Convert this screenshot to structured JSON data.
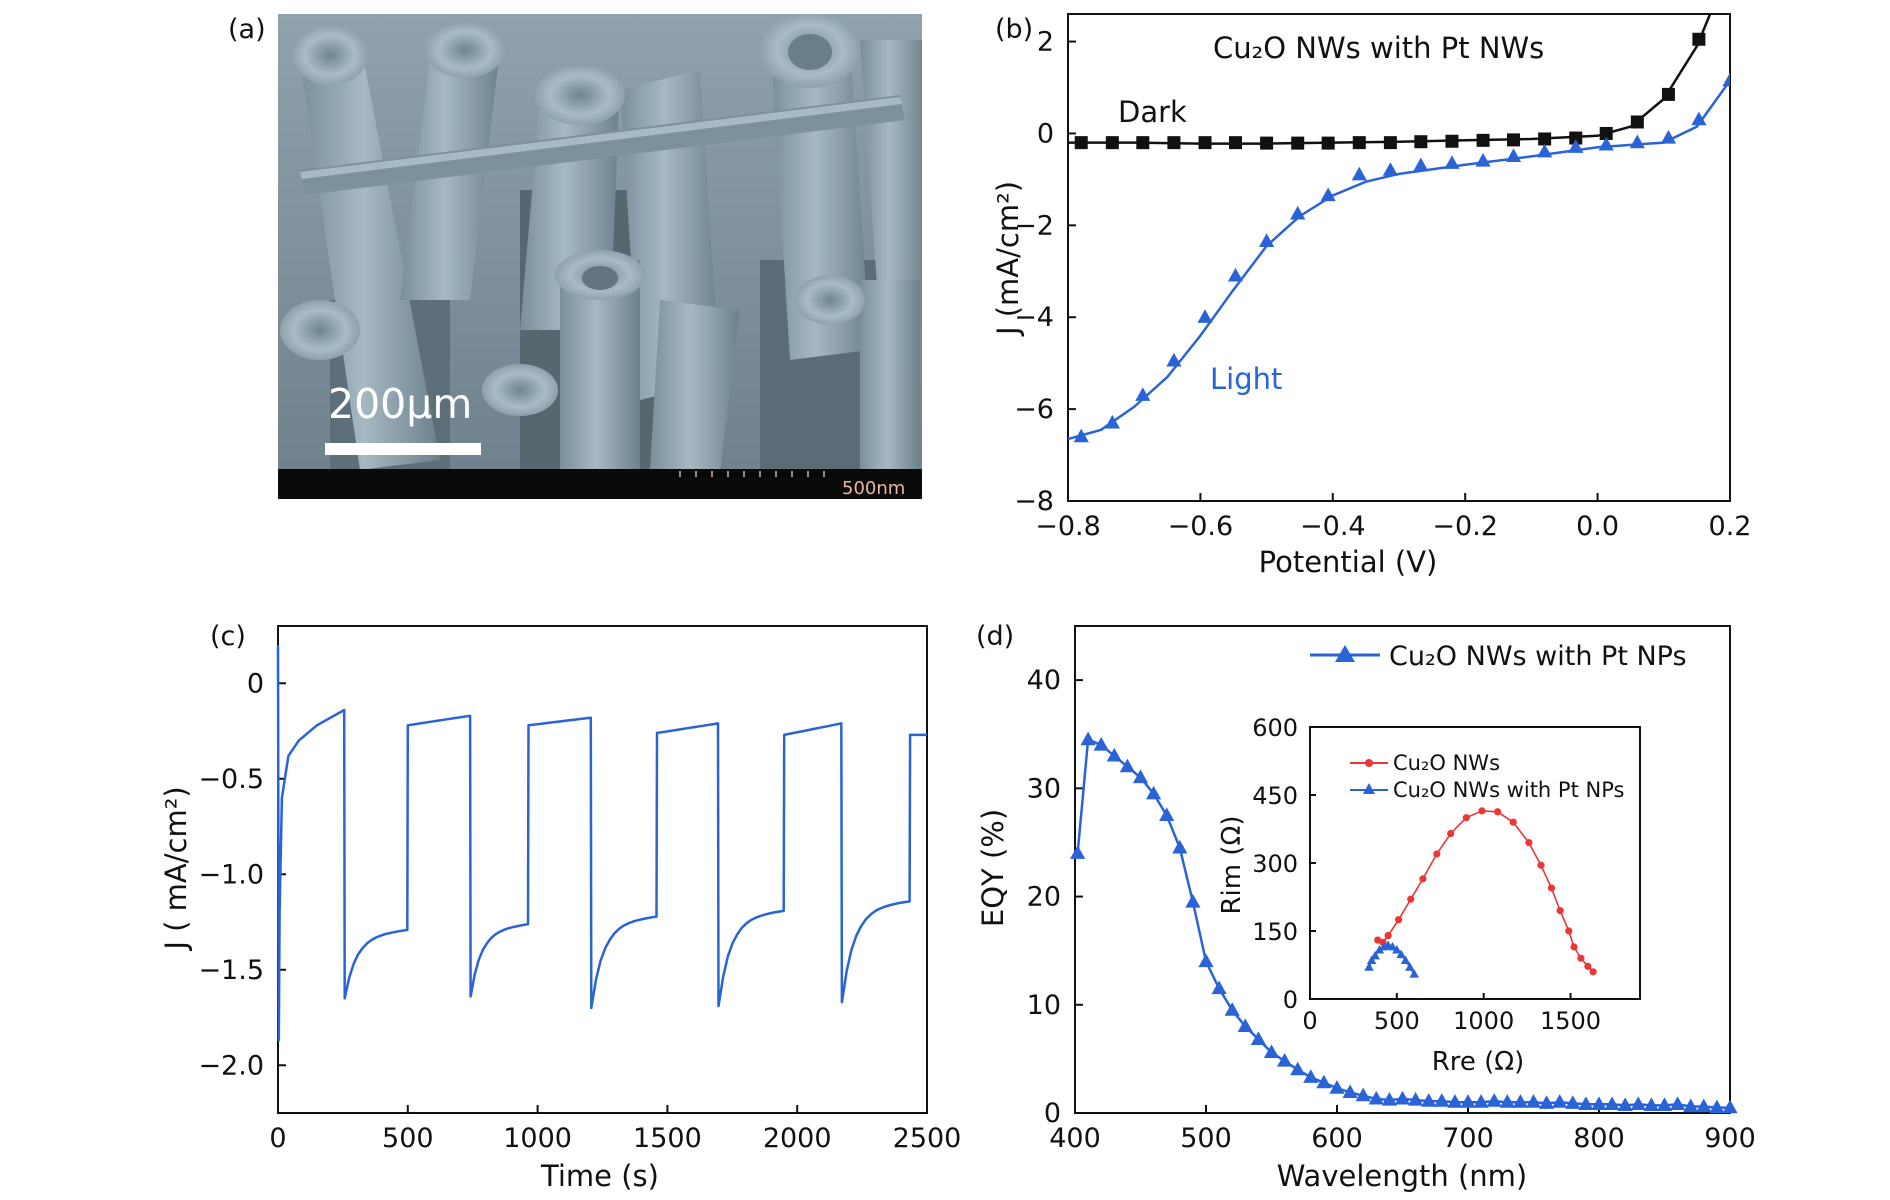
{
  "panel_labels": [
    "(a)",
    "(b)",
    "(c)",
    "(d)"
  ],
  "sem": {
    "scale_bar_label": "200μm",
    "footer_scale": "500nm"
  },
  "chart_data": [
    {
      "panel": "(b)",
      "type": "line",
      "title": "Cu₂O NWs with Pt NWs",
      "xlabel": "Potential (V)",
      "ylabel": "J (mA/cm²)",
      "xlim": [
        -0.8,
        0.2
      ],
      "ylim": [
        -8,
        2.6
      ],
      "xticks": [
        -0.8,
        -0.6,
        -0.4,
        -0.2,
        0.0,
        0.2
      ],
      "xtick_labels": [
        "−0.8",
        "−0.6",
        "−0.4",
        "−0.2",
        "0.0",
        "0.2"
      ],
      "yticks": [
        -8,
        -6,
        -4,
        -2,
        0,
        2
      ],
      "ytick_labels": [
        "−8",
        "−6",
        "−4",
        "−2",
        "0",
        "2"
      ],
      "series": [
        {
          "name": "Dark",
          "color": "#111111",
          "marker": "square",
          "line": [
            [
              -0.8,
              -0.2
            ],
            [
              -0.7,
              -0.2
            ],
            [
              -0.6,
              -0.22
            ],
            [
              -0.5,
              -0.22
            ],
            [
              -0.4,
              -0.2
            ],
            [
              -0.3,
              -0.18
            ],
            [
              -0.2,
              -0.15
            ],
            [
              -0.1,
              -0.12
            ],
            [
              0.0,
              -0.05
            ],
            [
              0.05,
              0.15
            ],
            [
              0.1,
              0.75
            ],
            [
              0.15,
              1.9
            ],
            [
              0.17,
              2.6
            ]
          ],
          "points": [
            [
              -0.78,
              -0.2
            ],
            [
              -0.733,
              -0.2
            ],
            [
              -0.687,
              -0.2
            ],
            [
              -0.64,
              -0.2
            ],
            [
              -0.593,
              -0.2
            ],
            [
              -0.547,
              -0.2
            ],
            [
              -0.5,
              -0.21
            ],
            [
              -0.453,
              -0.21
            ],
            [
              -0.407,
              -0.21
            ],
            [
              -0.36,
              -0.2
            ],
            [
              -0.313,
              -0.2
            ],
            [
              -0.267,
              -0.18
            ],
            [
              -0.22,
              -0.17
            ],
            [
              -0.173,
              -0.15
            ],
            [
              -0.127,
              -0.14
            ],
            [
              -0.08,
              -0.12
            ],
            [
              -0.033,
              -0.1
            ],
            [
              0.013,
              0.0
            ],
            [
              0.06,
              0.25
            ],
            [
              0.107,
              0.85
            ],
            [
              0.153,
              2.05
            ]
          ]
        },
        {
          "name": "Light",
          "color": "#2a63d8",
          "marker": "triangle",
          "line": [
            [
              -0.8,
              -6.65
            ],
            [
              -0.75,
              -6.45
            ],
            [
              -0.7,
              -5.95
            ],
            [
              -0.65,
              -5.3
            ],
            [
              -0.6,
              -4.4
            ],
            [
              -0.55,
              -3.4
            ],
            [
              -0.5,
              -2.45
            ],
            [
              -0.45,
              -1.8
            ],
            [
              -0.4,
              -1.35
            ],
            [
              -0.35,
              -1.05
            ],
            [
              -0.3,
              -0.88
            ],
            [
              -0.2,
              -0.68
            ],
            [
              -0.1,
              -0.5
            ],
            [
              0.0,
              -0.3
            ],
            [
              0.1,
              -0.2
            ],
            [
              0.15,
              0.15
            ],
            [
              0.2,
              1.15
            ]
          ],
          "points": [
            [
              -0.78,
              -6.6
            ],
            [
              -0.733,
              -6.3
            ],
            [
              -0.687,
              -5.7
            ],
            [
              -0.64,
              -4.95
            ],
            [
              -0.593,
              -4.0
            ],
            [
              -0.547,
              -3.1
            ],
            [
              -0.5,
              -2.35
            ],
            [
              -0.453,
              -1.75
            ],
            [
              -0.407,
              -1.35
            ],
            [
              -0.36,
              -0.9
            ],
            [
              -0.313,
              -0.8
            ],
            [
              -0.267,
              -0.7
            ],
            [
              -0.22,
              -0.65
            ],
            [
              -0.173,
              -0.6
            ],
            [
              -0.127,
              -0.5
            ],
            [
              -0.08,
              -0.4
            ],
            [
              -0.033,
              -0.3
            ],
            [
              0.013,
              -0.25
            ],
            [
              0.06,
              -0.2
            ],
            [
              0.107,
              -0.1
            ],
            [
              0.153,
              0.3
            ],
            [
              0.2,
              1.15
            ]
          ]
        }
      ],
      "annotations": [
        {
          "text": "Dark",
          "x": -0.75,
          "y": 0.5
        },
        {
          "text": "Light",
          "x": -0.59,
          "y": -5.1
        }
      ]
    },
    {
      "panel": "(c)",
      "type": "line",
      "xlabel": "Time (s)",
      "ylabel": "J ( mA/cm²)",
      "xlim": [
        0,
        2500
      ],
      "ylim": [
        -2.25,
        0.3
      ],
      "xticks": [
        0,
        500,
        1000,
        1500,
        2000,
        2500
      ],
      "xtick_labels": [
        "0",
        "500",
        "1000",
        "1500",
        "2000",
        "2500"
      ],
      "yticks": [
        0,
        -0.5,
        -1.0,
        -1.5,
        -2.0
      ],
      "ytick_labels": [
        "0",
        "−0.5",
        "−1.0",
        "−1.5",
        "−2.0"
      ],
      "series": [
        {
          "color": "#2a63d8",
          "cycles": [
            {
              "dark_start": 10,
              "light_start": 255,
              "dark_level_start": -0.24,
              "dark_level_end": -0.14,
              "spike": -1.65,
              "light_level": -1.32
            },
            {
              "dark_start": 500,
              "light_start": 740,
              "dark_level_start": -0.22,
              "dark_level_end": -0.17,
              "spike": -1.64,
              "light_level": -1.29
            },
            {
              "dark_start": 965,
              "light_start": 1205,
              "dark_level_start": -0.22,
              "dark_level_end": -0.18,
              "spike": -1.7,
              "light_level": -1.25
            },
            {
              "dark_start": 1460,
              "light_start": 1695,
              "dark_level_start": -0.26,
              "dark_level_end": -0.21,
              "spike": -1.69,
              "light_level": -1.22
            },
            {
              "dark_start": 1950,
              "light_start": 2170,
              "dark_level_start": -0.27,
              "dark_level_end": -0.21,
              "spike": -1.67,
              "light_level": -1.17
            },
            {
              "dark_start": 2435,
              "light_start": 2500,
              "dark_level_start": -0.27,
              "dark_level_end": -0.27,
              "spike": -0.27,
              "light_level": -0.27
            }
          ],
          "initial": {
            "start": 0.2,
            "min": -1.87
          }
        }
      ]
    },
    {
      "panel": "(d)",
      "type": "line",
      "xlabel": "Wavelength (nm)",
      "ylabel": "EQY (%)",
      "xlim": [
        400,
        900
      ],
      "ylim": [
        0,
        45
      ],
      "xticks": [
        400,
        500,
        600,
        700,
        800,
        900
      ],
      "xtick_labels": [
        "400",
        "500",
        "600",
        "700",
        "800",
        "900"
      ],
      "yticks": [
        0,
        10,
        20,
        30,
        40
      ],
      "ytick_labels": [
        "0",
        "10",
        "20",
        "30",
        "40"
      ],
      "legend": {
        "position": "top-right"
      },
      "series": [
        {
          "name": "Cu₂O NWs with Pt NPs",
          "color": "#2a63d8",
          "marker": "triangle",
          "points": [
            [
              402,
              24
            ],
            [
              410,
              34.5
            ],
            [
              420,
              34
            ],
            [
              430,
              33
            ],
            [
              440,
              32
            ],
            [
              450,
              31
            ],
            [
              460,
              29.5
            ],
            [
              470,
              27.5
            ],
            [
              480,
              24.5
            ],
            [
              490,
              19.5
            ],
            [
              500,
              14
            ],
            [
              510,
              11.5
            ],
            [
              520,
              9.5
            ],
            [
              530,
              8
            ],
            [
              540,
              6.8
            ],
            [
              550,
              5.6
            ],
            [
              560,
              4.8
            ],
            [
              570,
              4
            ],
            [
              580,
              3.3
            ],
            [
              590,
              2.8
            ],
            [
              600,
              2.3
            ],
            [
              610,
              1.9
            ],
            [
              620,
              1.6
            ],
            [
              630,
              1.3
            ],
            [
              640,
              1.2
            ],
            [
              650,
              1.3
            ],
            [
              660,
              1.2
            ],
            [
              670,
              1.1
            ],
            [
              680,
              1.1
            ],
            [
              690,
              1
            ],
            [
              700,
              1
            ],
            [
              710,
              1
            ],
            [
              720,
              1.1
            ],
            [
              730,
              1
            ],
            [
              740,
              1
            ],
            [
              750,
              1
            ],
            [
              760,
              0.9
            ],
            [
              770,
              1
            ],
            [
              780,
              0.9
            ],
            [
              790,
              0.8
            ],
            [
              800,
              0.8
            ],
            [
              810,
              0.8
            ],
            [
              820,
              0.7
            ],
            [
              830,
              0.8
            ],
            [
              840,
              0.7
            ],
            [
              850,
              0.7
            ],
            [
              860,
              0.8
            ],
            [
              870,
              0.6
            ],
            [
              880,
              0.6
            ],
            [
              890,
              0.5
            ],
            [
              900,
              0.5
            ]
          ]
        }
      ]
    },
    {
      "panel": "(d) inset",
      "type": "scatter",
      "xlabel": "Rre (Ω)",
      "ylabel": "Rim (Ω)",
      "xlim": [
        0,
        1900
      ],
      "ylim": [
        0,
        600
      ],
      "xticks": [
        0,
        500,
        1000,
        1500
      ],
      "xtick_labels": [
        "0",
        "500",
        "1000",
        "1500"
      ],
      "yticks": [
        0,
        150,
        300,
        450,
        600
      ],
      "ytick_labels": [
        "0",
        "150",
        "300",
        "450",
        "600"
      ],
      "legend": {
        "position": "top-left"
      },
      "series": [
        {
          "name": "Cu₂O NWs",
          "color": "#ee3535",
          "marker": "circle",
          "points": [
            [
              390,
              130
            ],
            [
              420,
              125
            ],
            [
              450,
              140
            ],
            [
              510,
              175
            ],
            [
              580,
              220
            ],
            [
              650,
              265
            ],
            [
              730,
              320
            ],
            [
              810,
              365
            ],
            [
              900,
              400
            ],
            [
              990,
              415
            ],
            [
              1080,
              413
            ],
            [
              1170,
              390
            ],
            [
              1260,
              345
            ],
            [
              1330,
              295
            ],
            [
              1390,
              245
            ],
            [
              1440,
              195
            ],
            [
              1490,
              150
            ],
            [
              1520,
              115
            ],
            [
              1560,
              90
            ],
            [
              1600,
              72
            ],
            [
              1630,
              60
            ]
          ]
        },
        {
          "name": "Cu₂O NWs with Pt NPs",
          "color": "#2a63d8",
          "marker": "triangle",
          "points": [
            [
              340,
              70
            ],
            [
              355,
              85
            ],
            [
              375,
              95
            ],
            [
              400,
              108
            ],
            [
              425,
              115
            ],
            [
              450,
              118
            ],
            [
              475,
              115
            ],
            [
              500,
              108
            ],
            [
              525,
              98
            ],
            [
              550,
              85
            ],
            [
              575,
              70
            ],
            [
              600,
              55
            ]
          ]
        }
      ]
    }
  ]
}
